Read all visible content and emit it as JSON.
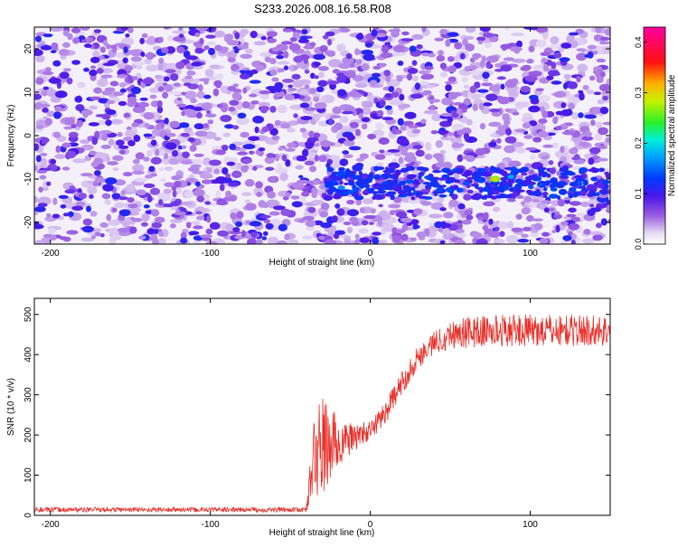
{
  "title": "S233.2026.008.16.58.R08",
  "chart_data": [
    {
      "type": "heatmap",
      "xlabel": "Height of straight line (km)",
      "ylabel": "Frequency (Hz)",
      "xlim": [
        -210,
        150
      ],
      "ylim": [
        -25,
        25
      ],
      "x_ticks": [
        -200,
        -100,
        0,
        100
      ],
      "y_ticks": [
        -20,
        -10,
        0,
        10,
        20
      ],
      "colorbar": {
        "label": "Normalized spectral amplitude",
        "range": [
          0.0,
          0.43
        ],
        "ticks": [
          0.0,
          0.1,
          0.2,
          0.3,
          0.4
        ],
        "tick_labels": [
          "0.0",
          "0.1",
          "0.2",
          "0.3",
          "0.4"
        ],
        "colormap": "rainbow (white → purple → blue → cyan → green → yellow → red → magenta)"
      },
      "features": {
        "background_level": "≈0.03–0.10 random speckle across the full frequency range",
        "signal_band": {
          "frequency_hz": -11,
          "x_range_km": [
            -30,
            150
          ],
          "typical_amplitude": 0.12,
          "peak": {
            "x_km": 78,
            "frequency_hz": -10,
            "amplitude": 0.3
          }
        }
      }
    },
    {
      "type": "line",
      "xlabel": "Height of straight line (km)",
      "ylabel": "SNR (10 * v/v)",
      "xlim": [
        -210,
        150
      ],
      "ylim": [
        0,
        540
      ],
      "x_ticks": [
        -200,
        -100,
        0,
        100
      ],
      "y_ticks": [
        0,
        100,
        200,
        300,
        400,
        500
      ],
      "color": "#e8302a",
      "series": [
        {
          "profile_x": [
            -210,
            -40,
            -35,
            -30,
            -25,
            -20,
            -15,
            -10,
            0,
            10,
            20,
            30,
            40,
            50,
            60,
            80,
            100,
            120,
            150
          ],
          "profile_y": [
            14,
            14,
            150,
            170,
            175,
            180,
            185,
            195,
            210,
            260,
            330,
            395,
            430,
            450,
            455,
            460,
            460,
            460,
            460
          ],
          "noise_amplitude": [
            6,
            6,
            110,
            130,
            100,
            70,
            45,
            35,
            25,
            30,
            30,
            30,
            30,
            35,
            40,
            40,
            40,
            40,
            40
          ]
        }
      ]
    }
  ]
}
